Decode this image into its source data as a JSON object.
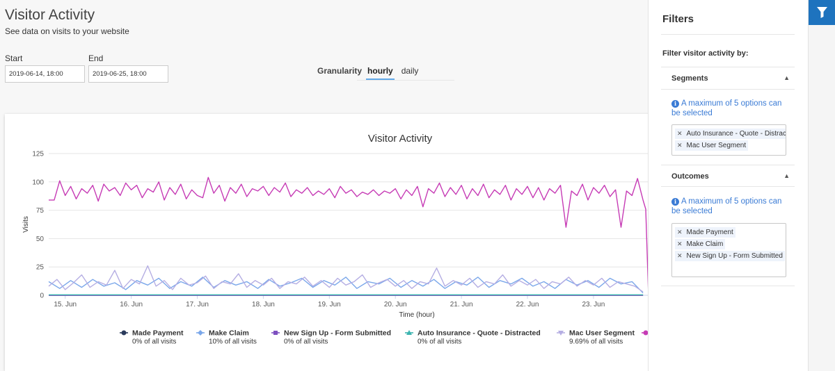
{
  "header": {
    "title": "Visitor Activity",
    "subtitle": "See data on visits to your website"
  },
  "range": {
    "start_label": "Start",
    "start_value": "2019-06-14, 18:00",
    "end_label": "End",
    "end_value": "2019-06-25, 18:00"
  },
  "granularity": {
    "label": "Granularity",
    "options": [
      "hourly",
      "daily"
    ],
    "selected": "hourly"
  },
  "colors": {
    "accent": "#1e73be",
    "info": "#3a7bd5"
  },
  "chart_data": {
    "type": "line",
    "title": "Visitor Activity",
    "xlabel": "Time (hour)",
    "ylabel": "Visits",
    "ylim": [
      0,
      125
    ],
    "yticks": [
      0,
      25,
      50,
      75,
      100,
      125
    ],
    "xticks": [
      "15. Jun",
      "16. Jun",
      "17. Jun",
      "18. Jun",
      "19. Jun",
      "20. Jun",
      "21. Jun",
      "22. Jun",
      "23. Jun"
    ],
    "grid": true,
    "legend_position": "bottom",
    "series": [
      {
        "name": "Made Payment",
        "color": "#2a3b5c",
        "marker": "circle",
        "summary": "0% of all visits",
        "points": [
          [
            0,
            0
          ],
          [
            216,
            0
          ]
        ]
      },
      {
        "name": "Make Claim",
        "color": "#7aa7ea",
        "marker": "diamond",
        "summary": "10% of all visits",
        "points": [
          [
            0,
            12
          ],
          [
            4,
            6
          ],
          [
            8,
            13
          ],
          [
            12,
            7
          ],
          [
            16,
            14
          ],
          [
            20,
            8
          ],
          [
            24,
            11
          ],
          [
            28,
            5
          ],
          [
            32,
            13
          ],
          [
            36,
            9
          ],
          [
            40,
            15
          ],
          [
            44,
            6
          ],
          [
            48,
            12
          ],
          [
            52,
            8
          ],
          [
            56,
            16
          ],
          [
            60,
            7
          ],
          [
            64,
            13
          ],
          [
            68,
            9
          ],
          [
            72,
            12
          ],
          [
            76,
            6
          ],
          [
            80,
            14
          ],
          [
            84,
            8
          ],
          [
            88,
            11
          ],
          [
            92,
            15
          ],
          [
            96,
            7
          ],
          [
            100,
            13
          ],
          [
            104,
            9
          ],
          [
            108,
            16
          ],
          [
            112,
            6
          ],
          [
            116,
            12
          ],
          [
            120,
            10
          ],
          [
            124,
            15
          ],
          [
            128,
            7
          ],
          [
            132,
            13
          ],
          [
            136,
            8
          ],
          [
            140,
            14
          ],
          [
            144,
            6
          ],
          [
            148,
            12
          ],
          [
            152,
            9
          ],
          [
            156,
            16
          ],
          [
            160,
            7
          ],
          [
            164,
            13
          ],
          [
            168,
            10
          ],
          [
            172,
            15
          ],
          [
            176,
            8
          ],
          [
            180,
            12
          ],
          [
            184,
            6
          ],
          [
            188,
            14
          ],
          [
            192,
            9
          ],
          [
            196,
            13
          ],
          [
            200,
            7
          ],
          [
            204,
            15
          ],
          [
            208,
            10
          ],
          [
            212,
            12
          ],
          [
            216,
            2
          ]
        ]
      },
      {
        "name": "New Sign Up - Form Submitted",
        "color": "#7d4fbf",
        "marker": "square",
        "summary": "0% of all visits",
        "points": [
          [
            0,
            0
          ],
          [
            216,
            0
          ]
        ]
      },
      {
        "name": "Auto Insurance - Quote - Distracted",
        "color": "#3cb4b0",
        "marker": "triangle",
        "summary": "0% of all visits",
        "points": [
          [
            0,
            0.4
          ],
          [
            216,
            0.4
          ]
        ]
      },
      {
        "name": "Mac User Segment",
        "color": "#b5aee3",
        "marker": "triangle-down",
        "summary": "9.69% of all visits",
        "points": [
          [
            0,
            8
          ],
          [
            3,
            14
          ],
          [
            6,
            5
          ],
          [
            9,
            11
          ],
          [
            12,
            18
          ],
          [
            15,
            7
          ],
          [
            18,
            12
          ],
          [
            21,
            9
          ],
          [
            24,
            22
          ],
          [
            27,
            6
          ],
          [
            30,
            14
          ],
          [
            33,
            10
          ],
          [
            36,
            26
          ],
          [
            39,
            8
          ],
          [
            42,
            13
          ],
          [
            45,
            5
          ],
          [
            48,
            15
          ],
          [
            51,
            9
          ],
          [
            54,
            11
          ],
          [
            57,
            17
          ],
          [
            60,
            6
          ],
          [
            63,
            12
          ],
          [
            66,
            10
          ],
          [
            69,
            19
          ],
          [
            72,
            7
          ],
          [
            75,
            13
          ],
          [
            78,
            9
          ],
          [
            81,
            15
          ],
          [
            84,
            6
          ],
          [
            87,
            12
          ],
          [
            90,
            10
          ],
          [
            93,
            16
          ],
          [
            96,
            8
          ],
          [
            99,
            13
          ],
          [
            102,
            7
          ],
          [
            105,
            15
          ],
          [
            108,
            9
          ],
          [
            111,
            12
          ],
          [
            114,
            18
          ],
          [
            117,
            7
          ],
          [
            120,
            11
          ],
          [
            123,
            14
          ],
          [
            126,
            8
          ],
          [
            129,
            13
          ],
          [
            132,
            6
          ],
          [
            135,
            12
          ],
          [
            138,
            10
          ],
          [
            141,
            24
          ],
          [
            144,
            8
          ],
          [
            147,
            13
          ],
          [
            150,
            9
          ],
          [
            153,
            15
          ],
          [
            156,
            7
          ],
          [
            159,
            12
          ],
          [
            162,
            10
          ],
          [
            165,
            18
          ],
          [
            168,
            8
          ],
          [
            171,
            13
          ],
          [
            174,
            9
          ],
          [
            177,
            14
          ],
          [
            180,
            6
          ],
          [
            183,
            12
          ],
          [
            186,
            10
          ],
          [
            189,
            16
          ],
          [
            192,
            8
          ],
          [
            195,
            13
          ],
          [
            198,
            9
          ],
          [
            201,
            15
          ],
          [
            204,
            7
          ],
          [
            207,
            12
          ],
          [
            210,
            10
          ],
          [
            213,
            8
          ],
          [
            216,
            3
          ]
        ]
      },
      {
        "name": "",
        "color": "#c63bb5",
        "marker": "circle",
        "summary": "",
        "points": [
          [
            0,
            84
          ],
          [
            2,
            84
          ],
          [
            4,
            101
          ],
          [
            6,
            88
          ],
          [
            8,
            96
          ],
          [
            10,
            85
          ],
          [
            12,
            94
          ],
          [
            14,
            90
          ],
          [
            16,
            97
          ],
          [
            18,
            83
          ],
          [
            20,
            98
          ],
          [
            22,
            92
          ],
          [
            24,
            95
          ],
          [
            26,
            88
          ],
          [
            28,
            99
          ],
          [
            30,
            93
          ],
          [
            32,
            97
          ],
          [
            34,
            86
          ],
          [
            36,
            94
          ],
          [
            38,
            91
          ],
          [
            40,
            100
          ],
          [
            42,
            84
          ],
          [
            44,
            95
          ],
          [
            46,
            89
          ],
          [
            48,
            98
          ],
          [
            50,
            85
          ],
          [
            52,
            93
          ],
          [
            54,
            88
          ],
          [
            56,
            86
          ],
          [
            58,
            104
          ],
          [
            60,
            90
          ],
          [
            62,
            97
          ],
          [
            64,
            83
          ],
          [
            66,
            95
          ],
          [
            68,
            90
          ],
          [
            70,
            98
          ],
          [
            72,
            87
          ],
          [
            74,
            94
          ],
          [
            76,
            92
          ],
          [
            78,
            96
          ],
          [
            80,
            88
          ],
          [
            82,
            95
          ],
          [
            84,
            91
          ],
          [
            86,
            99
          ],
          [
            88,
            87
          ],
          [
            90,
            93
          ],
          [
            92,
            90
          ],
          [
            94,
            95
          ],
          [
            96,
            88
          ],
          [
            98,
            92
          ],
          [
            100,
            89
          ],
          [
            102,
            94
          ],
          [
            104,
            86
          ],
          [
            106,
            96
          ],
          [
            108,
            90
          ],
          [
            110,
            93
          ],
          [
            112,
            87
          ],
          [
            114,
            91
          ],
          [
            116,
            89
          ],
          [
            118,
            93
          ],
          [
            120,
            88
          ],
          [
            122,
            92
          ],
          [
            124,
            90
          ],
          [
            126,
            94
          ],
          [
            128,
            85
          ],
          [
            130,
            93
          ],
          [
            132,
            88
          ],
          [
            134,
            96
          ],
          [
            136,
            78
          ],
          [
            138,
            94
          ],
          [
            140,
            90
          ],
          [
            142,
            99
          ],
          [
            144,
            87
          ],
          [
            146,
            95
          ],
          [
            148,
            89
          ],
          [
            150,
            97
          ],
          [
            152,
            85
          ],
          [
            154,
            94
          ],
          [
            156,
            88
          ],
          [
            158,
            98
          ],
          [
            160,
            86
          ],
          [
            162,
            93
          ],
          [
            164,
            89
          ],
          [
            166,
            97
          ],
          [
            168,
            84
          ],
          [
            170,
            94
          ],
          [
            172,
            89
          ],
          [
            174,
            96
          ],
          [
            176,
            86
          ],
          [
            178,
            95
          ],
          [
            180,
            84
          ],
          [
            182,
            94
          ],
          [
            184,
            90
          ],
          [
            186,
            97
          ],
          [
            188,
            60
          ],
          [
            190,
            92
          ],
          [
            192,
            88
          ],
          [
            194,
            98
          ],
          [
            196,
            84
          ],
          [
            198,
            95
          ],
          [
            200,
            90
          ],
          [
            202,
            97
          ],
          [
            204,
            87
          ],
          [
            206,
            93
          ],
          [
            208,
            60
          ],
          [
            210,
            92
          ],
          [
            212,
            88
          ],
          [
            214,
            103
          ],
          [
            216,
            84
          ],
          [
            217,
            76
          ],
          [
            218,
            0
          ]
        ]
      }
    ]
  },
  "sidebar": {
    "title": "Filters",
    "filter_by": "Filter visitor activity by:",
    "segments": {
      "label": "Segments",
      "info": "A maximum of 5 options can be selected",
      "tags": [
        "Auto Insurance - Quote - Distracted",
        "Mac User Segment"
      ]
    },
    "outcomes": {
      "label": "Outcomes",
      "info": "A maximum of 5 options can be selected",
      "tags": [
        "Made Payment",
        "Make Claim",
        "New Sign Up - Form Submitted"
      ]
    }
  }
}
